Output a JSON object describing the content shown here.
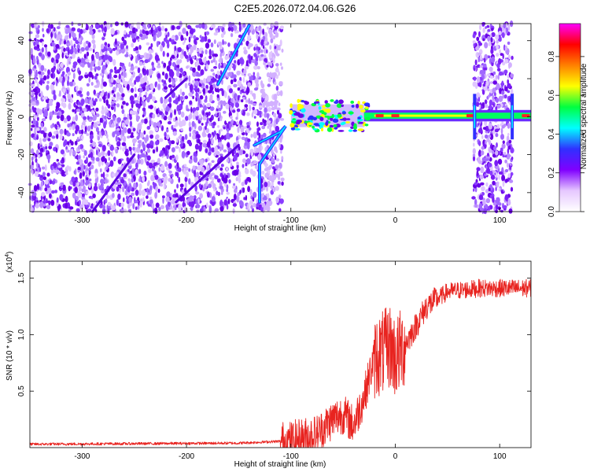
{
  "figure_title": "C2E5.2026.072.04.06.G26",
  "chart_data": [
    {
      "type": "heatmap",
      "xlabel": "Height of straight line (km)",
      "ylabel": "Frequency (Hz)",
      "xlim": [
        -350,
        130
      ],
      "ylim": [
        -50,
        49
      ],
      "xticks": [
        -300,
        -200,
        -100,
        0,
        100
      ],
      "yticks": [
        -40,
        -20,
        0,
        20,
        40
      ],
      "xtick_labels": [
        "-300",
        "-200",
        "-100",
        "0",
        "100"
      ],
      "ytick_labels": [
        "-40",
        "-20",
        "0",
        "20",
        "40"
      ],
      "colorbar": {
        "label": "Normalized spectral amplitude",
        "range": [
          0,
          0.97
        ],
        "ticks": [
          0,
          0.2,
          0.4,
          0.6,
          0.8
        ],
        "tick_labels": [
          "0.0",
          "0.2",
          "0.4",
          "0.6",
          "0.8"
        ],
        "colors": [
          "#ffffff",
          "#e6c8ff",
          "#8000ff",
          "#3030ff",
          "#00ffff",
          "#00ff40",
          "#ffff00",
          "#ff8000",
          "#ff0000",
          "#ff00ff"
        ]
      },
      "features": {
        "noise_region_km": [
          -350,
          -100
        ],
        "noise_region2_km": [
          75,
          112
        ],
        "carrier_frequency_hz": 0.5,
        "carrier_region_km": [
          -100,
          130
        ],
        "streak_1": [
          [
            -170,
            17
          ],
          [
            -140,
            48
          ]
        ],
        "streak_2": [
          [
            -135,
            -15
          ],
          [
            -110,
            -8
          ],
          [
            -105,
            -5
          ],
          [
            -130,
            -25
          ],
          [
            -130,
            -45
          ]
        ],
        "diagonal_streaks": [
          [
            [
              -290,
              -50
            ],
            [
              -250,
              -20
            ]
          ],
          [
            [
              -210,
              -45
            ],
            [
              -150,
              -15
            ]
          ],
          [
            [
              -220,
              10
            ],
            [
              -200,
              20
            ]
          ]
        ]
      }
    },
    {
      "type": "line",
      "xlabel": "Height of straight line (km)",
      "ylabel": "SNR (10 * v/v)",
      "multiplier_label": "(x10",
      "multiplier_exp": "4",
      "multiplier_close": ")",
      "xlim": [
        -350,
        130
      ],
      "ylim": [
        0,
        1.65
      ],
      "xticks": [
        -300,
        -200,
        -100,
        0,
        100
      ],
      "yticks": [
        0.5,
        1.0,
        1.5
      ],
      "xtick_labels": [
        "-300",
        "-200",
        "-100",
        "0",
        "100"
      ],
      "ytick_labels": [
        "0.5",
        "1.0",
        "1.5"
      ],
      "color": "#e8231f",
      "profile": {
        "x": [
          -350,
          -150,
          -100,
          -75,
          -60,
          -50,
          -40,
          -30,
          -20,
          -10,
          -5,
          0,
          5,
          15,
          30,
          50,
          80,
          130
        ],
        "y": [
          0.03,
          0.04,
          0.06,
          0.12,
          0.25,
          0.3,
          0.2,
          0.45,
          0.8,
          0.85,
          0.9,
          0.8,
          0.85,
          1.0,
          1.25,
          1.38,
          1.41,
          1.41
        ]
      }
    }
  ]
}
